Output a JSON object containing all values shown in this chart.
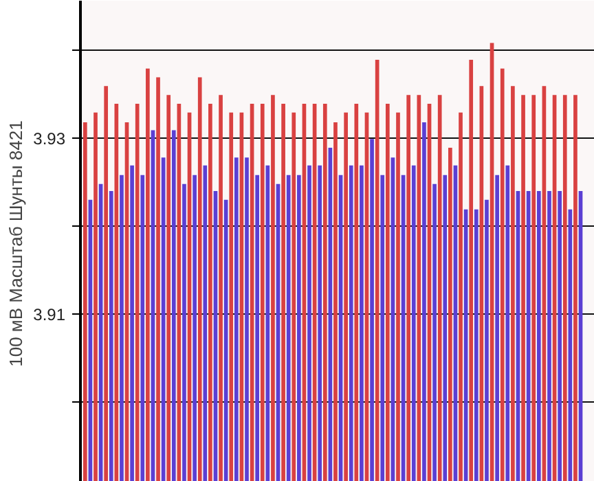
{
  "chart_data": {
    "type": "bar",
    "ylabel": "100 мВ Масштаб  Шунты 8421",
    "categories": [
      null,
      null,
      null,
      null,
      null,
      null,
      null,
      null,
      null,
      null,
      null,
      null,
      null,
      null,
      null,
      null,
      null,
      null,
      null,
      null,
      null,
      null,
      null,
      null,
      null,
      null,
      null,
      null,
      null,
      null,
      null,
      null,
      null,
      null,
      null,
      null,
      null,
      null,
      null,
      null,
      null,
      null,
      null,
      null,
      null,
      null,
      null,
      null
    ],
    "series": [
      {
        "color": "#d94141",
        "values": [
          3.9318,
          3.9329,
          3.9359,
          3.9339,
          3.9318,
          3.9339,
          3.9379,
          3.9369,
          3.9349,
          3.9339,
          3.9329,
          3.9369,
          3.9339,
          3.9349,
          3.9329,
          3.9329,
          3.9339,
          3.9339,
          3.9349,
          3.9339,
          3.9329,
          3.9339,
          3.9339,
          3.9339,
          3.9318,
          3.9329,
          3.9339,
          3.9329,
          3.9389,
          3.9339,
          3.9329,
          3.9349,
          3.9349,
          3.9339,
          3.9349,
          3.9289,
          3.9329,
          3.9389,
          3.9359,
          3.9408,
          3.9379,
          3.9359,
          3.9349,
          3.9349,
          3.9359,
          3.9349,
          3.9349,
          3.9349
        ]
      },
      {
        "color": "#5b3fd3",
        "values": [
          3.923,
          3.9248,
          3.924,
          3.9258,
          3.9269,
          3.9258,
          3.9309,
          3.9278,
          3.9309,
          3.9248,
          3.9258,
          3.9269,
          3.924,
          3.923,
          3.9278,
          3.9278,
          3.9258,
          3.9269,
          3.9248,
          3.9258,
          3.9258,
          3.9269,
          3.9269,
          3.9289,
          3.9258,
          3.9269,
          3.9269,
          3.9299,
          3.9258,
          3.9278,
          3.9258,
          3.9269,
          3.9318,
          3.9248,
          3.9258,
          3.9269,
          3.9219,
          3.9219,
          3.923,
          3.9258,
          3.9269,
          3.924,
          3.924,
          3.924,
          3.924,
          3.924,
          3.9219,
          3.924
        ]
      }
    ],
    "ylim": [
      3.891,
      3.9456
    ],
    "yticks": [
      {
        "value": 3.94,
        "label": null
      },
      3.93,
      {
        "value": 3.92,
        "label": null
      },
      3.91,
      {
        "value": 3.9,
        "label": null
      }
    ],
    "grid": "y"
  }
}
